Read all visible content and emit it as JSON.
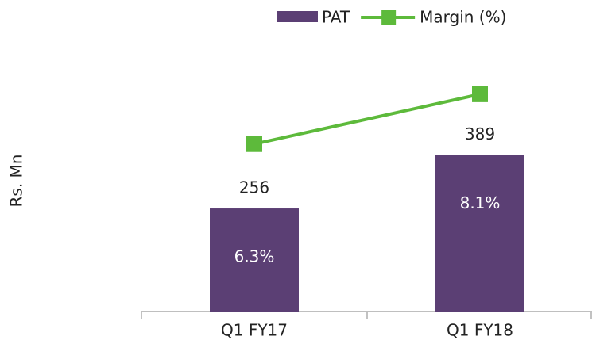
{
  "chart_data": {
    "type": "bar",
    "categories": [
      "Q1 FY17",
      "Q1 FY18"
    ],
    "y_label": "Rs. Mn",
    "series": [
      {
        "name": "PAT",
        "type": "bar",
        "color": "#5b3f74",
        "values": [
          256,
          389
        ]
      },
      {
        "name": "Margin (%)",
        "type": "line",
        "color": "#5dba3b",
        "values": [
          6.3,
          8.1
        ],
        "value_labels": [
          "6.3%",
          "8.1%"
        ],
        "axis": "y2"
      }
    ],
    "ylim": [
      0,
      650
    ],
    "y2lim": [
      0.25,
      9.7
    ],
    "legend": "top"
  }
}
